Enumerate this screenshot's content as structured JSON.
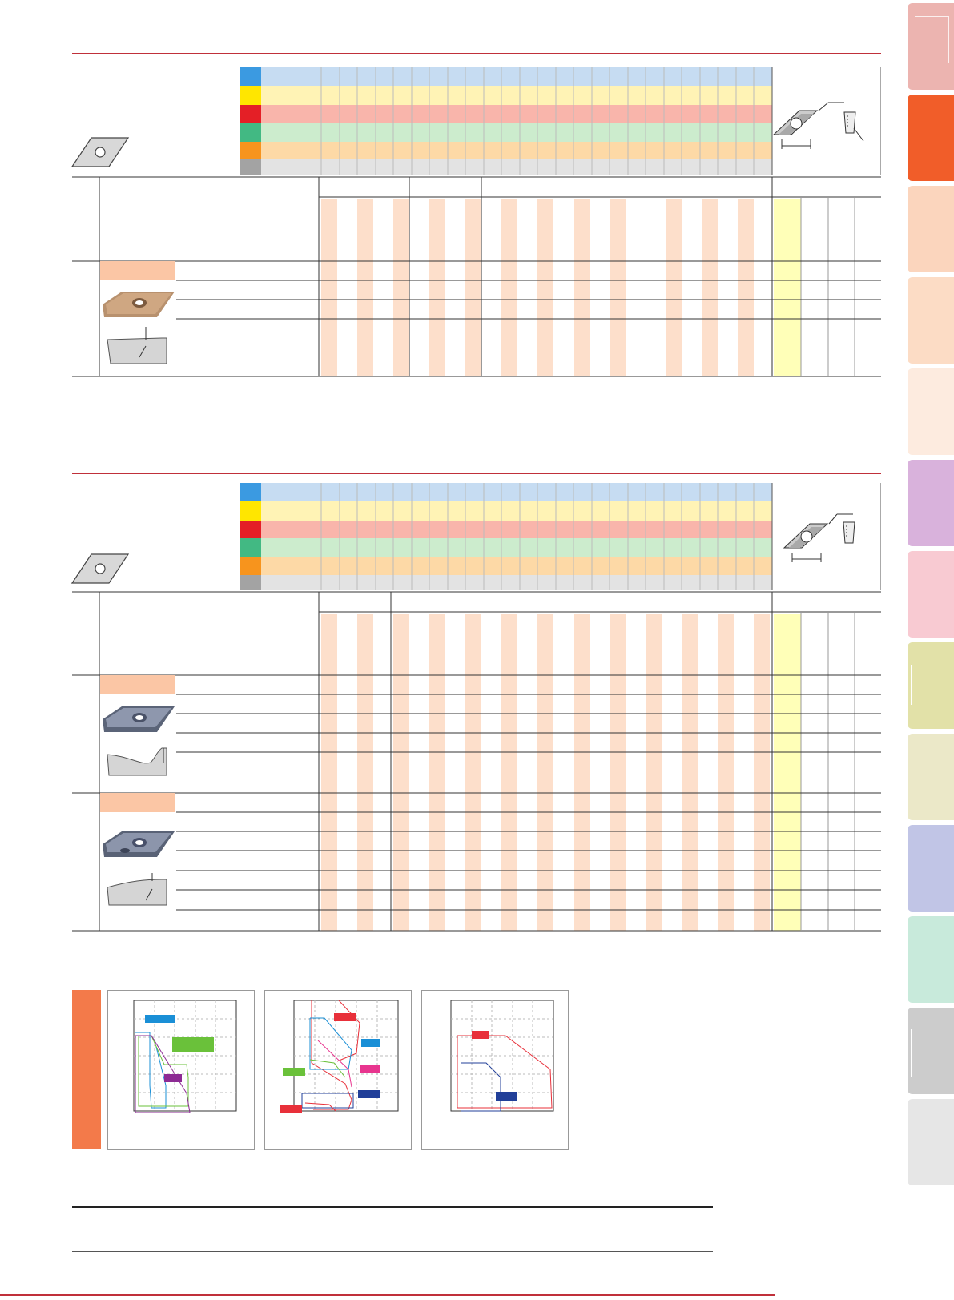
{
  "colors": {
    "accent_red": "#c0303a",
    "row_blue": "#c6dcf2",
    "row_yellow": "#fff3b5",
    "row_red": "#f9b5ab",
    "row_green": "#cceccd",
    "row_orange": "#fdd9a6",
    "row_gray": "#e3e3e3",
    "stripe_peach": "#fddfcb",
    "col_yellow": "#ffffb8",
    "series_blue": "#1a8fd6",
    "series_green": "#6ac13a",
    "series_purple": "#8d2b94",
    "series_red": "#e8303a",
    "series_pink": "#e8358f",
    "series_navy": "#213f99"
  },
  "sidebar": {
    "tabs": [
      {
        "name": "tab-1",
        "color": "#ecb4b0"
      },
      {
        "name": "tab-2",
        "color": "#f15d29"
      },
      {
        "name": "tab-3",
        "color": "#fbd5bd"
      },
      {
        "name": "tab-4",
        "color": "#fcdcc5"
      },
      {
        "name": "tab-5",
        "color": "#fdebdf"
      },
      {
        "name": "tab-6",
        "color": "#d9b2dc"
      },
      {
        "name": "tab-7",
        "color": "#f8cad2"
      },
      {
        "name": "tab-8",
        "color": "#e2e1a8"
      },
      {
        "name": "tab-9",
        "color": "#ebe8c8"
      },
      {
        "name": "tab-10",
        "color": "#c1c5e6"
      },
      {
        "name": "tab-11",
        "color": "#c8eadb"
      },
      {
        "name": "tab-12",
        "color": "#cccccc"
      },
      {
        "name": "tab-13",
        "color": "#e6e6e6"
      }
    ]
  },
  "tables": [
    {
      "name": "table-top",
      "inserts": [
        {
          "name": "insert-group-1",
          "rows": 4,
          "tint": "gold"
        }
      ]
    },
    {
      "name": "table-bottom",
      "inserts": [
        {
          "name": "insert-group-2",
          "rows": 5,
          "tint": "blue"
        },
        {
          "name": "insert-group-3",
          "rows": 7,
          "tint": "blue"
        }
      ]
    }
  ],
  "charts": [
    {
      "name": "chart-1",
      "series_colors": [
        "#1a8fd6",
        "#6ac13a",
        "#8d2b94"
      ]
    },
    {
      "name": "chart-2",
      "series_colors": [
        "#e8303a",
        "#1a8fd6",
        "#e8358f",
        "#6ac13a",
        "#213f99",
        "#e8303a"
      ]
    },
    {
      "name": "chart-3",
      "series_colors": [
        "#e8303a",
        "#213f99"
      ]
    }
  ]
}
